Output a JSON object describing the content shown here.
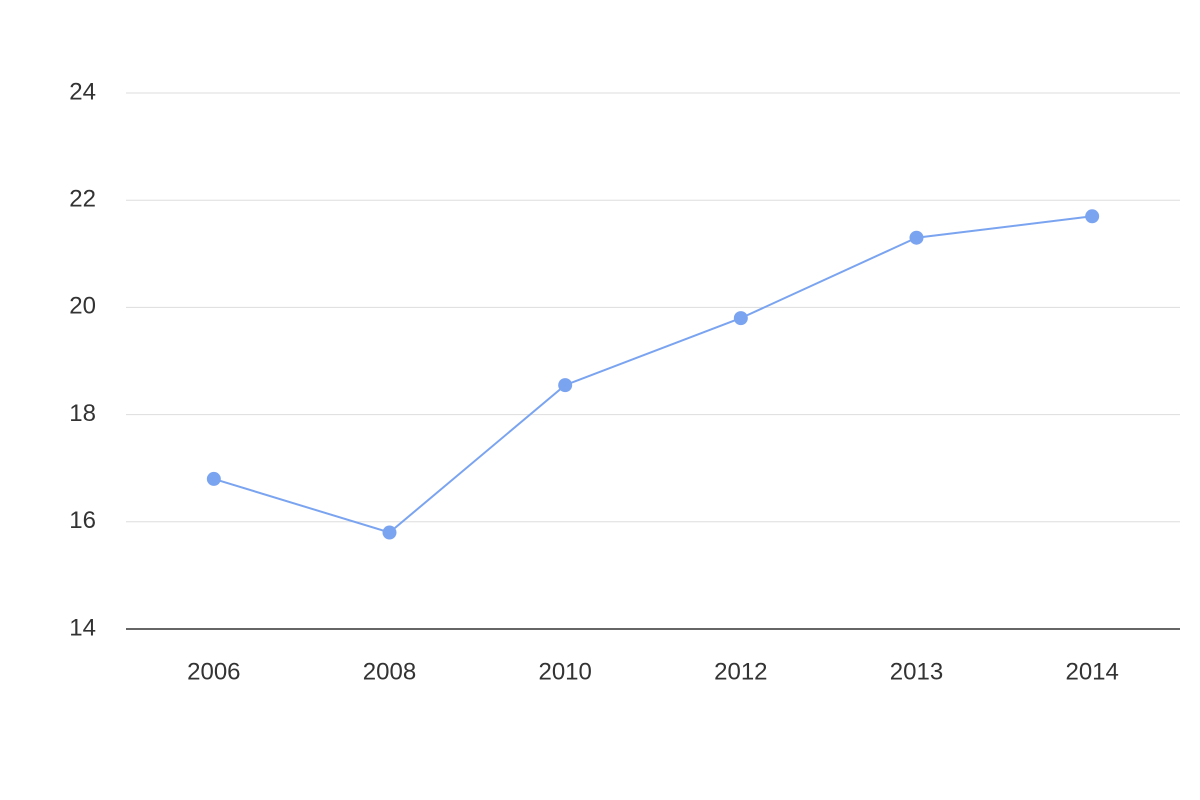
{
  "chart_data": {
    "type": "line",
    "categories": [
      "2006",
      "2008",
      "2010",
      "2012",
      "2013",
      "2014"
    ],
    "values": [
      16.8,
      15.8,
      18.55,
      19.8,
      21.3,
      21.7
    ],
    "color": "#7ba4f0",
    "ylim": [
      14,
      24
    ],
    "yticks": [
      14,
      16,
      18,
      20,
      22,
      24
    ],
    "grid": true
  }
}
